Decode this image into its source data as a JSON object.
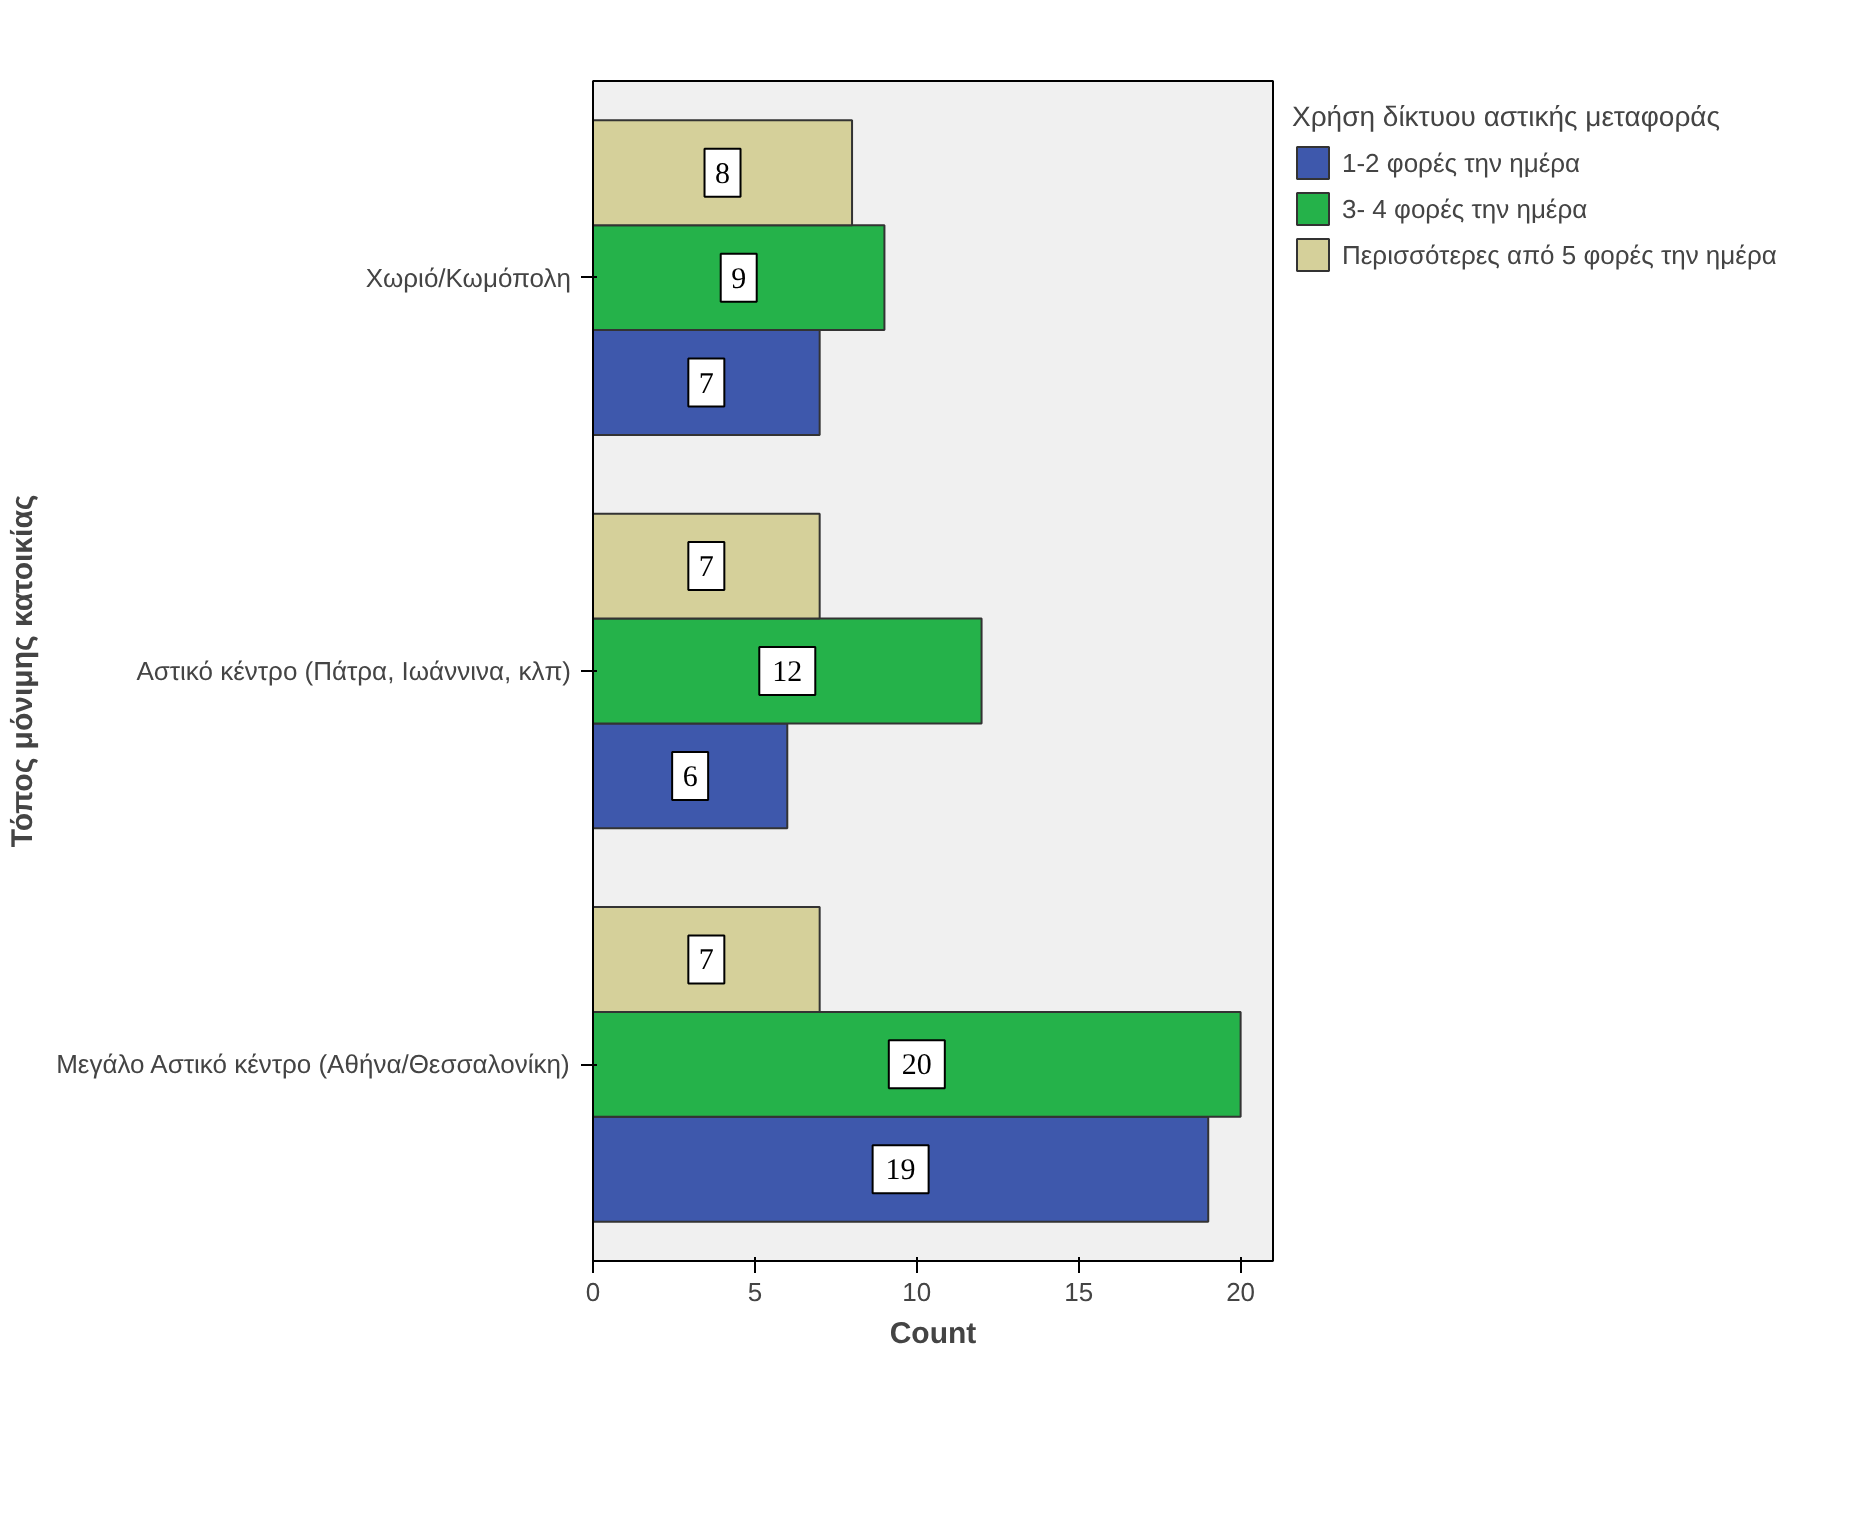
{
  "chart_data": {
    "type": "bar",
    "orientation": "horizontal",
    "categories": [
      "Χωριό/Κωμόπολη",
      "Αστικό κέντρο (Πάτρα, Ιωάννινα, κλπ)",
      "Μεγάλο Αστικό κέντρο (Αθήνα/Θεσσαλονίκη)"
    ],
    "series": [
      {
        "name": "1-2 φορές την ημέρα",
        "color": "#3e58ac",
        "values": [
          7,
          6,
          19
        ]
      },
      {
        "name": "3- 4 φορές την ημέρα",
        "color": "#25b24a",
        "values": [
          9,
          12,
          20
        ]
      },
      {
        "name": "Περισσότερες από 5 φορές την ημέρα",
        "color": "#d5d09a",
        "values": [
          8,
          7,
          7
        ]
      }
    ],
    "xlabel": "Count",
    "ylabel": "Τόπος μόνιμης κατοικίας",
    "legend_title": "Χρήση δίκτυου αστικής μεταφοράς",
    "xlim": [
      0,
      21
    ],
    "xticks": [
      0,
      5,
      10,
      15,
      20
    ],
    "grid": false,
    "legend": "right",
    "data_labels": true
  }
}
